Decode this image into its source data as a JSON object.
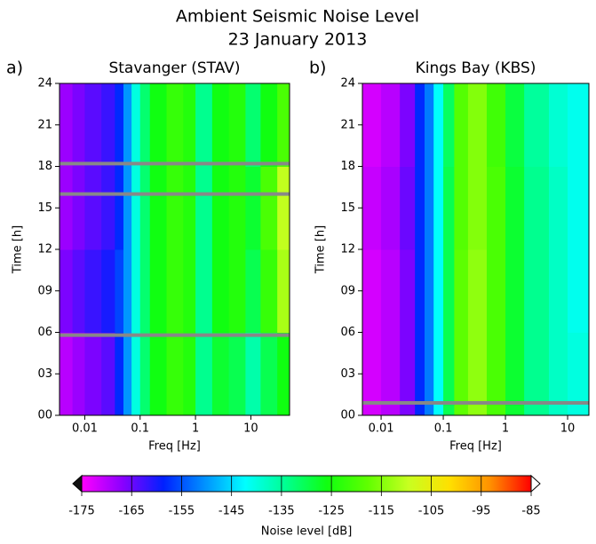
{
  "title": "Ambient Seismic Noise Level",
  "subtitle": "23 January 2013",
  "chart_data": [
    {
      "type": "heatmap",
      "panel_label": "a)",
      "title": "Stavanger (STAV)",
      "xlabel": "Freq [Hz]",
      "ylabel": "Time [h]",
      "log_x": true,
      "xlim": [
        0.0035,
        50
      ],
      "xticks": [
        0.01,
        0.1,
        1,
        10
      ],
      "ylim": [
        0,
        24
      ],
      "yticks": [
        {
          "value": 0,
          "label": "00"
        },
        {
          "value": 3,
          "label": "03"
        },
        {
          "value": 6,
          "label": "06"
        },
        {
          "value": 9,
          "label": "09"
        },
        12,
        15,
        18,
        21,
        24
      ],
      "freq_bins": [
        0.0035,
        0.006,
        0.01,
        0.02,
        0.035,
        0.05,
        0.07,
        0.1,
        0.15,
        0.3,
        0.6,
        1,
        2,
        4,
        8,
        15,
        30,
        50
      ],
      "time_bins": [
        0,
        6,
        12,
        18,
        24
      ],
      "values": [
        [
          -170,
          -168,
          -166,
          -164,
          -158,
          -150,
          -140,
          -132,
          -126,
          -122,
          -124,
          -134,
          -128,
          -130,
          -136,
          -130,
          -126
        ],
        [
          -166,
          -164,
          -162,
          -160,
          -156,
          -150,
          -140,
          -132,
          -126,
          -122,
          -124,
          -134,
          -126,
          -124,
          -130,
          -122,
          -112
        ],
        [
          -168,
          -166,
          -164,
          -162,
          -158,
          -150,
          -140,
          -132,
          -126,
          -122,
          -124,
          -134,
          -126,
          -124,
          -128,
          -120,
          -110
        ],
        [
          -168,
          -166,
          -164,
          -162,
          -158,
          -150,
          -140,
          -132,
          -126,
          -122,
          -124,
          -134,
          -126,
          -124,
          -132,
          -126,
          -120
        ]
      ],
      "gaps": [
        5.8,
        16,
        18.2
      ],
      "gap_color": "#888888"
    },
    {
      "type": "heatmap",
      "panel_label": "b)",
      "title": "Kings Bay (KBS)",
      "xlabel": "Freq [Hz]",
      "ylabel": "Time [h]",
      "log_x": true,
      "xlim": [
        0.005,
        22
      ],
      "xticks": [
        0.01,
        0.1,
        1,
        10
      ],
      "ylim": [
        0,
        24
      ],
      "yticks": [
        {
          "value": 0,
          "label": "00"
        },
        {
          "value": 3,
          "label": "03"
        },
        {
          "value": 6,
          "label": "06"
        },
        {
          "value": 9,
          "label": "09"
        },
        12,
        15,
        18,
        21,
        24
      ],
      "freq_bins": [
        0.005,
        0.01,
        0.02,
        0.035,
        0.05,
        0.07,
        0.1,
        0.15,
        0.25,
        0.5,
        1,
        2,
        5,
        10,
        22
      ],
      "time_bins": [
        0,
        6,
        12,
        18,
        24
      ],
      "values": [
        [
          -172,
          -170,
          -166,
          -158,
          -152,
          -142,
          -130,
          -118,
          -114,
          -120,
          -128,
          -134,
          -138,
          -140
        ],
        [
          -172,
          -170,
          -166,
          -158,
          -152,
          -142,
          -130,
          -118,
          -114,
          -120,
          -128,
          -134,
          -138,
          -141
        ],
        [
          -171,
          -169,
          -165,
          -158,
          -152,
          -142,
          -130,
          -119,
          -115,
          -120,
          -128,
          -134,
          -138,
          -141
        ],
        [
          -172,
          -170,
          -166,
          -158,
          -152,
          -142,
          -131,
          -119,
          -115,
          -121,
          -129,
          -135,
          -139,
          -141
        ]
      ],
      "gaps": [
        0.9
      ],
      "gap_color": "#888888"
    }
  ],
  "colorbar": {
    "label": "Noise level [dB]",
    "clim": [
      -175,
      -85
    ],
    "ticks": [
      -175,
      -165,
      -155,
      -145,
      -135,
      -125,
      -115,
      -105,
      -95,
      -85
    ],
    "colors": [
      "#ff00ff",
      "#8a00ff",
      "#0020ff",
      "#0090ff",
      "#00ffff",
      "#00ff90",
      "#10ff10",
      "#60ff00",
      "#c8ff20",
      "#ffe000",
      "#ff9000",
      "#ff0000"
    ]
  }
}
